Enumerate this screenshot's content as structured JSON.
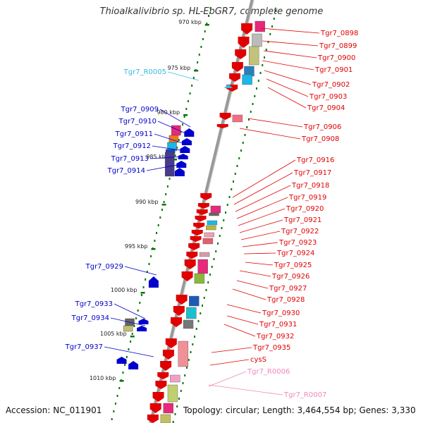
{
  "title": "Thioalkalivibrio sp. HL-EbGR7, complete genome",
  "accession": "Accession: NC_011901",
  "topology": "Topology: circular; Length: 3,464,554 bp; Genes: 3,330",
  "ruler_labels": [
    "970 kbp",
    "975 kbp",
    "980 kbp",
    "985 kbp",
    "990 kbp",
    "995 kbp",
    "1000 kbp",
    "1005 kbp",
    "1010 kbp"
  ],
  "colors": {
    "forward_gene": "#e00000",
    "reverse_gene": "#0000cc",
    "rna_gene": "#33bbdd",
    "pseudo_rna": "#ee88bb",
    "ruler_tick": "#007700",
    "backbone": "#888888"
  },
  "right_labels": [
    {
      "text": "Tgr7_0898",
      "kind": "forward"
    },
    {
      "text": "Tgr7_0899",
      "kind": "forward"
    },
    {
      "text": "Tgr7_0900",
      "kind": "forward"
    },
    {
      "text": "Tgr7_0901",
      "kind": "forward"
    },
    {
      "text": "Tgr7_0902",
      "kind": "forward"
    },
    {
      "text": "Tgr7_0903",
      "kind": "forward"
    },
    {
      "text": "Tgr7_0904",
      "kind": "forward"
    },
    {
      "text": "Tgr7_0906",
      "kind": "forward"
    },
    {
      "text": "Tgr7_0908",
      "kind": "forward"
    },
    {
      "text": "Tgr7_0916",
      "kind": "forward"
    },
    {
      "text": "Tgr7_0917",
      "kind": "forward"
    },
    {
      "text": "Tgr7_0918",
      "kind": "forward"
    },
    {
      "text": "Tgr7_0919",
      "kind": "forward"
    },
    {
      "text": "Tgr7_0920",
      "kind": "forward"
    },
    {
      "text": "Tgr7_0921",
      "kind": "forward"
    },
    {
      "text": "Tgr7_0922",
      "kind": "forward"
    },
    {
      "text": "Tgr7_0923",
      "kind": "forward"
    },
    {
      "text": "Tgr7_0924",
      "kind": "forward"
    },
    {
      "text": "Tgr7_0925",
      "kind": "forward"
    },
    {
      "text": "Tgr7_0926",
      "kind": "forward"
    },
    {
      "text": "Tgr7_0927",
      "kind": "forward"
    },
    {
      "text": "Tgr7_0928",
      "kind": "forward"
    },
    {
      "text": "Tgr7_0930",
      "kind": "forward"
    },
    {
      "text": "Tgr7_0931",
      "kind": "forward"
    },
    {
      "text": "Tgr7_0932",
      "kind": "forward"
    },
    {
      "text": "Tgr7_0935",
      "kind": "forward"
    },
    {
      "text": "cysS",
      "kind": "forward"
    },
    {
      "text": "Tgr7_R0006",
      "kind": "pseudo"
    },
    {
      "text": "Tgr7_R0007",
      "kind": "pseudo"
    }
  ],
  "left_labels": [
    {
      "text": "Tgr7_R0005",
      "kind": "rna"
    },
    {
      "text": "Tgr7_0909",
      "kind": "reverse"
    },
    {
      "text": "Tgr7_0910",
      "kind": "reverse"
    },
    {
      "text": "Tgr7_0911",
      "kind": "reverse"
    },
    {
      "text": "Tgr7_0912",
      "kind": "reverse"
    },
    {
      "text": "Tgr7_0913",
      "kind": "reverse"
    },
    {
      "text": "Tgr7_0914",
      "kind": "reverse"
    },
    {
      "text": "Tgr7_0929",
      "kind": "reverse"
    },
    {
      "text": "Tgr7_0933",
      "kind": "reverse"
    },
    {
      "text": "Tgr7_0934",
      "kind": "reverse"
    },
    {
      "text": "Tgr7_0937",
      "kind": "reverse"
    }
  ]
}
